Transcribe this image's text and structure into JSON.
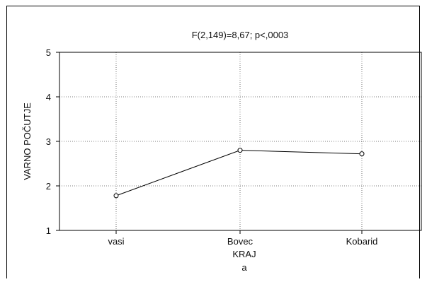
{
  "chart_data": {
    "type": "line",
    "title": "F(2,149)=8,67; p<,0003",
    "xlabel": "KRAJ",
    "sublabel": "a",
    "ylabel": "VARNO POČUTJE",
    "categories": [
      "vasi",
      "Bovec",
      "Kobarid"
    ],
    "series": [
      {
        "values": [
          1.78,
          2.8,
          2.72
        ]
      }
    ],
    "ylim": [
      1,
      5
    ],
    "yticks": [
      "1",
      "2",
      "3",
      "4",
      "5"
    ],
    "grid": true,
    "marker": "open-circle",
    "line_color": "#000000"
  }
}
